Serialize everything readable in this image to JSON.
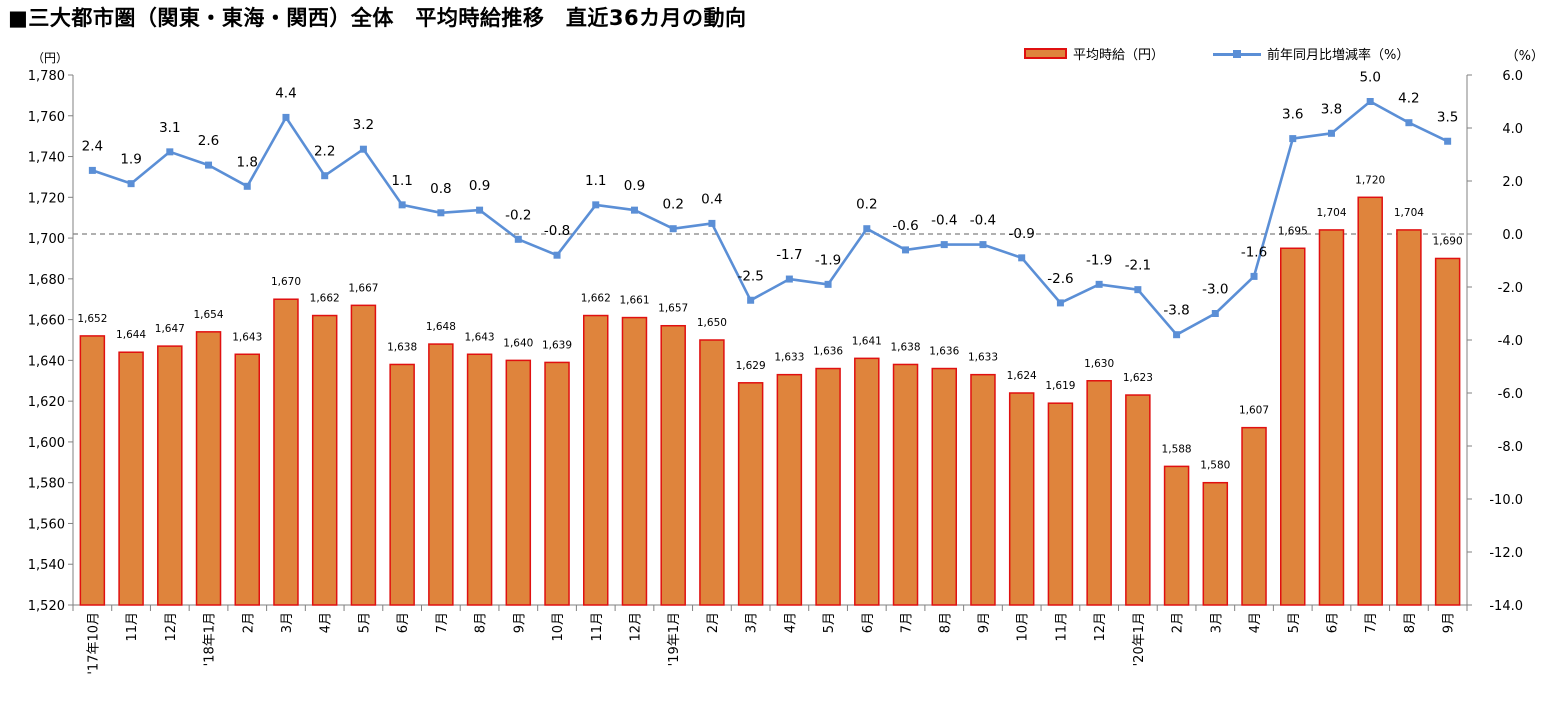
{
  "title": "■三大都市圏（関東・東海・関西）全体　平均時給推移　直近36カ月の動向",
  "legend": {
    "bar": "平均時給（円）",
    "line": "前年同月比増減率（%）"
  },
  "colors": {
    "bar_fill": "#DF843C",
    "bar_stroke": "#E01010",
    "line": "#5B8FD6",
    "zero_line": "#808080"
  },
  "chart_data": {
    "type": "bar",
    "title": "■三大都市圏（関東・東海・関西）全体　平均時給推移　直近36カ月の動向",
    "left_axis": {
      "unit_label": "（円）",
      "range": [
        1520,
        1780
      ],
      "step": 20
    },
    "right_axis": {
      "unit_label": "（%）",
      "range": [
        -14.0,
        6.0
      ],
      "step": 2.0
    },
    "categories": [
      "'17年10月",
      "11月",
      "12月",
      "'18年1月",
      "2月",
      "3月",
      "4月",
      "5月",
      "6月",
      "7月",
      "8月",
      "9月",
      "10月",
      "11月",
      "12月",
      "'19年1月",
      "2月",
      "3月",
      "4月",
      "5月",
      "6月",
      "7月",
      "8月",
      "9月",
      "10月",
      "11月",
      "12月",
      "'20年1月",
      "2月",
      "3月",
      "4月",
      "5月",
      "6月",
      "7月",
      "8月",
      "9月"
    ],
    "bar_labels": [
      "1,652",
      "1,644",
      "1,647",
      "1,654",
      "1,643",
      "1,670",
      "1,662",
      "1,667",
      "1,638",
      "1,648",
      "1,643",
      "1,640",
      "1,639",
      "1,662",
      "1,661",
      "1,657",
      "1,650",
      "1,629",
      "1,633",
      "1,636",
      "1,641",
      "1,638",
      "1,636",
      "1,633",
      "1,624",
      "1,619",
      "1,630",
      "1,623",
      "1,588",
      "1,580",
      "1,607",
      "1,695",
      "1,704",
      "1,720",
      "1,704",
      "1,690"
    ],
    "line_labels": [
      "2.4",
      "1.9",
      "3.1",
      "2.6",
      "1.8",
      "4.4",
      "2.2",
      "3.2",
      "1.1",
      "0.8",
      "0.9",
      "-0.2",
      "-0.8",
      "1.1",
      "0.9",
      "0.2",
      "0.4",
      "-2.5",
      "-1.7",
      "-1.9",
      "0.2",
      "-0.6",
      "-0.4",
      "-0.4",
      "-0.9",
      "-2.6",
      "-1.9",
      "-2.1",
      "-3.8",
      "-3.0",
      "-1.6",
      "3.6",
      "3.8",
      "5.0",
      "4.2",
      "3.5"
    ],
    "series": [
      {
        "name": "平均時給（円）",
        "type": "bar",
        "axis": "left",
        "values": [
          1652,
          1644,
          1647,
          1654,
          1643,
          1670,
          1662,
          1667,
          1638,
          1648,
          1643,
          1640,
          1639,
          1662,
          1661,
          1657,
          1650,
          1629,
          1633,
          1636,
          1641,
          1638,
          1636,
          1633,
          1624,
          1619,
          1630,
          1623,
          1588,
          1580,
          1607,
          1695,
          1704,
          1720,
          1704,
          1690
        ]
      },
      {
        "name": "前年同月比増減率（%）",
        "type": "line",
        "axis": "right",
        "values": [
          2.4,
          1.9,
          3.1,
          2.6,
          1.8,
          4.4,
          2.2,
          3.2,
          1.1,
          0.8,
          0.9,
          -0.2,
          -0.8,
          1.1,
          0.9,
          0.2,
          0.4,
          -2.5,
          -1.7,
          -1.9,
          0.2,
          -0.6,
          -0.4,
          -0.4,
          -0.9,
          -2.6,
          -1.9,
          -2.1,
          -3.8,
          -3.0,
          -1.6,
          3.6,
          3.8,
          5.0,
          4.2,
          3.5
        ]
      }
    ]
  }
}
